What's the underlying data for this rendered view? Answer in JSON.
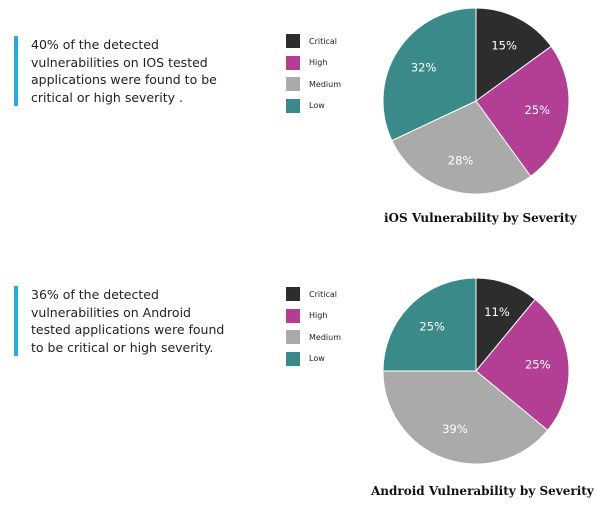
{
  "colors": {
    "accent_bar": "#29abe2",
    "critical": "#2d2d2d",
    "high": "#b23f93",
    "medium": "#aaaaaa",
    "low": "#3b8a8a"
  },
  "chart_data": [
    {
      "type": "pie",
      "title": "iOS Vulnerability by Severity",
      "description": "40% of the detected vulnerabilities on IOS tested applications were found to be critical or high severity .",
      "legend_position": "left",
      "categories": [
        "Critical",
        "High",
        "Medium",
        "Low"
      ],
      "values": [
        15,
        25,
        28,
        32
      ],
      "labels": [
        "15%",
        "25%",
        "28%",
        "32%"
      ]
    },
    {
      "type": "pie",
      "title": "Android Vulnerability by Severity",
      "description": " 36% of the detected vulnerabilities on Android tested applications were found to be critical or high severity.",
      "legend_position": "left",
      "categories": [
        "Critical",
        "High",
        "Medium",
        "Low"
      ],
      "values": [
        11,
        25,
        39,
        25
      ],
      "labels": [
        "11%",
        "25%",
        "39%",
        "25%"
      ]
    }
  ]
}
